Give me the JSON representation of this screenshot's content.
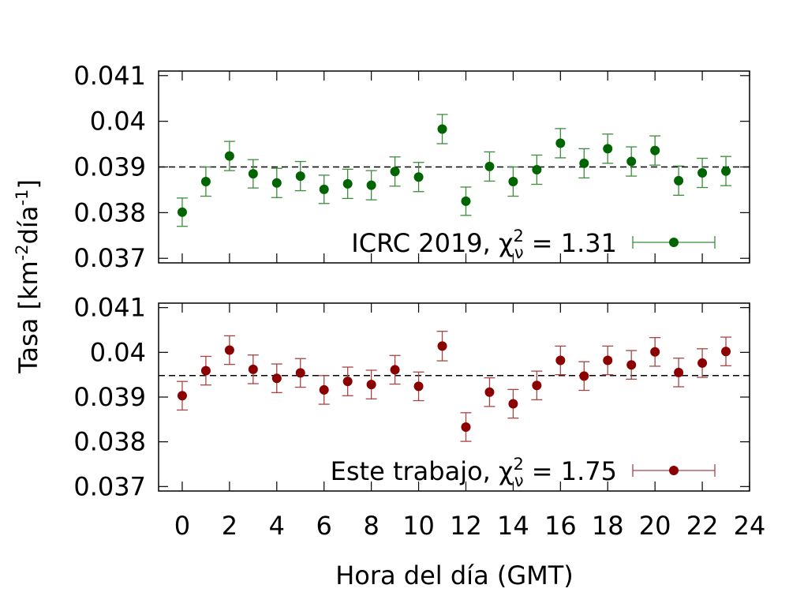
{
  "chart_data": {
    "type": "scatter",
    "xlabel": "Hora del día (GMT)",
    "ylabel": {
      "prefix": "Tasa [km",
      "exp1": "-2",
      "mid": "día",
      "exp2": "-1",
      "suffix": "]"
    },
    "xlim": [
      -1,
      24
    ],
    "x_ticks": [
      "0",
      "2",
      "4",
      "6",
      "8",
      "10",
      "12",
      "14",
      "16",
      "18",
      "20",
      "22",
      "24"
    ],
    "panels": [
      {
        "name": "top",
        "color": "#006400",
        "error_color": "#3c8c3c",
        "legend": {
          "label": "ICRC 2019, ",
          "chi": "χ",
          "sup": "2",
          "sub": "ν",
          "value": " = 1.31",
          "position": "bottom-right"
        },
        "ylim": [
          0.0369,
          0.0411
        ],
        "y_ticks": [
          "0.041",
          "0.04",
          "0.039",
          "0.038",
          "0.037"
        ],
        "reference_line": 0.039,
        "x": [
          0,
          1,
          2,
          3,
          4,
          5,
          6,
          7,
          8,
          9,
          10,
          11,
          12,
          13,
          14,
          15,
          16,
          17,
          18,
          19,
          20,
          21,
          22,
          23
        ],
        "y": [
          0.03801,
          0.03868,
          0.03924,
          0.03885,
          0.03865,
          0.0388,
          0.03851,
          0.03863,
          0.0386,
          0.0389,
          0.03878,
          0.03983,
          0.03825,
          0.03901,
          0.03868,
          0.03894,
          0.03952,
          0.03908,
          0.0394,
          0.03912,
          0.03936,
          0.0387,
          0.03887,
          0.03891
        ],
        "yerr": [
          0.00031,
          0.00032,
          0.00032,
          0.00031,
          0.00032,
          0.00032,
          0.00031,
          0.00032,
          0.00032,
          0.00032,
          0.00032,
          0.00032,
          0.00031,
          0.00032,
          0.00032,
          0.00032,
          0.00032,
          0.00032,
          0.00032,
          0.00032,
          0.00032,
          0.00032,
          0.00032,
          0.00032
        ]
      },
      {
        "name": "bottom",
        "color": "#8b0000",
        "error_color": "#a84444",
        "legend": {
          "label": "Este trabajo, ",
          "chi": "χ",
          "sup": "2",
          "sub": "ν",
          "value": " = 1.75",
          "position": "bottom-right"
        },
        "ylim": [
          0.0369,
          0.0411
        ],
        "y_ticks": [
          "0.041",
          "0.04",
          "0.039",
          "0.038",
          "0.037"
        ],
        "reference_line": 0.03948,
        "x": [
          0,
          1,
          2,
          3,
          4,
          5,
          6,
          7,
          8,
          9,
          10,
          11,
          12,
          13,
          14,
          15,
          16,
          17,
          18,
          19,
          20,
          21,
          22,
          23
        ],
        "y": [
          0.03903,
          0.03959,
          0.04005,
          0.03962,
          0.03942,
          0.03954,
          0.03916,
          0.03935,
          0.03928,
          0.03961,
          0.03924,
          0.04014,
          0.03833,
          0.03911,
          0.03885,
          0.03926,
          0.03982,
          0.03947,
          0.03982,
          0.03972,
          0.04001,
          0.03955,
          0.03976,
          0.04002
        ],
        "yerr": [
          0.00032,
          0.00032,
          0.00032,
          0.00032,
          0.00032,
          0.00032,
          0.00032,
          0.00032,
          0.00032,
          0.00032,
          0.00032,
          0.00033,
          0.00032,
          0.00032,
          0.00032,
          0.00032,
          0.00032,
          0.00032,
          0.00032,
          0.00032,
          0.00032,
          0.00032,
          0.00032,
          0.00032
        ]
      }
    ],
    "grid": false
  }
}
